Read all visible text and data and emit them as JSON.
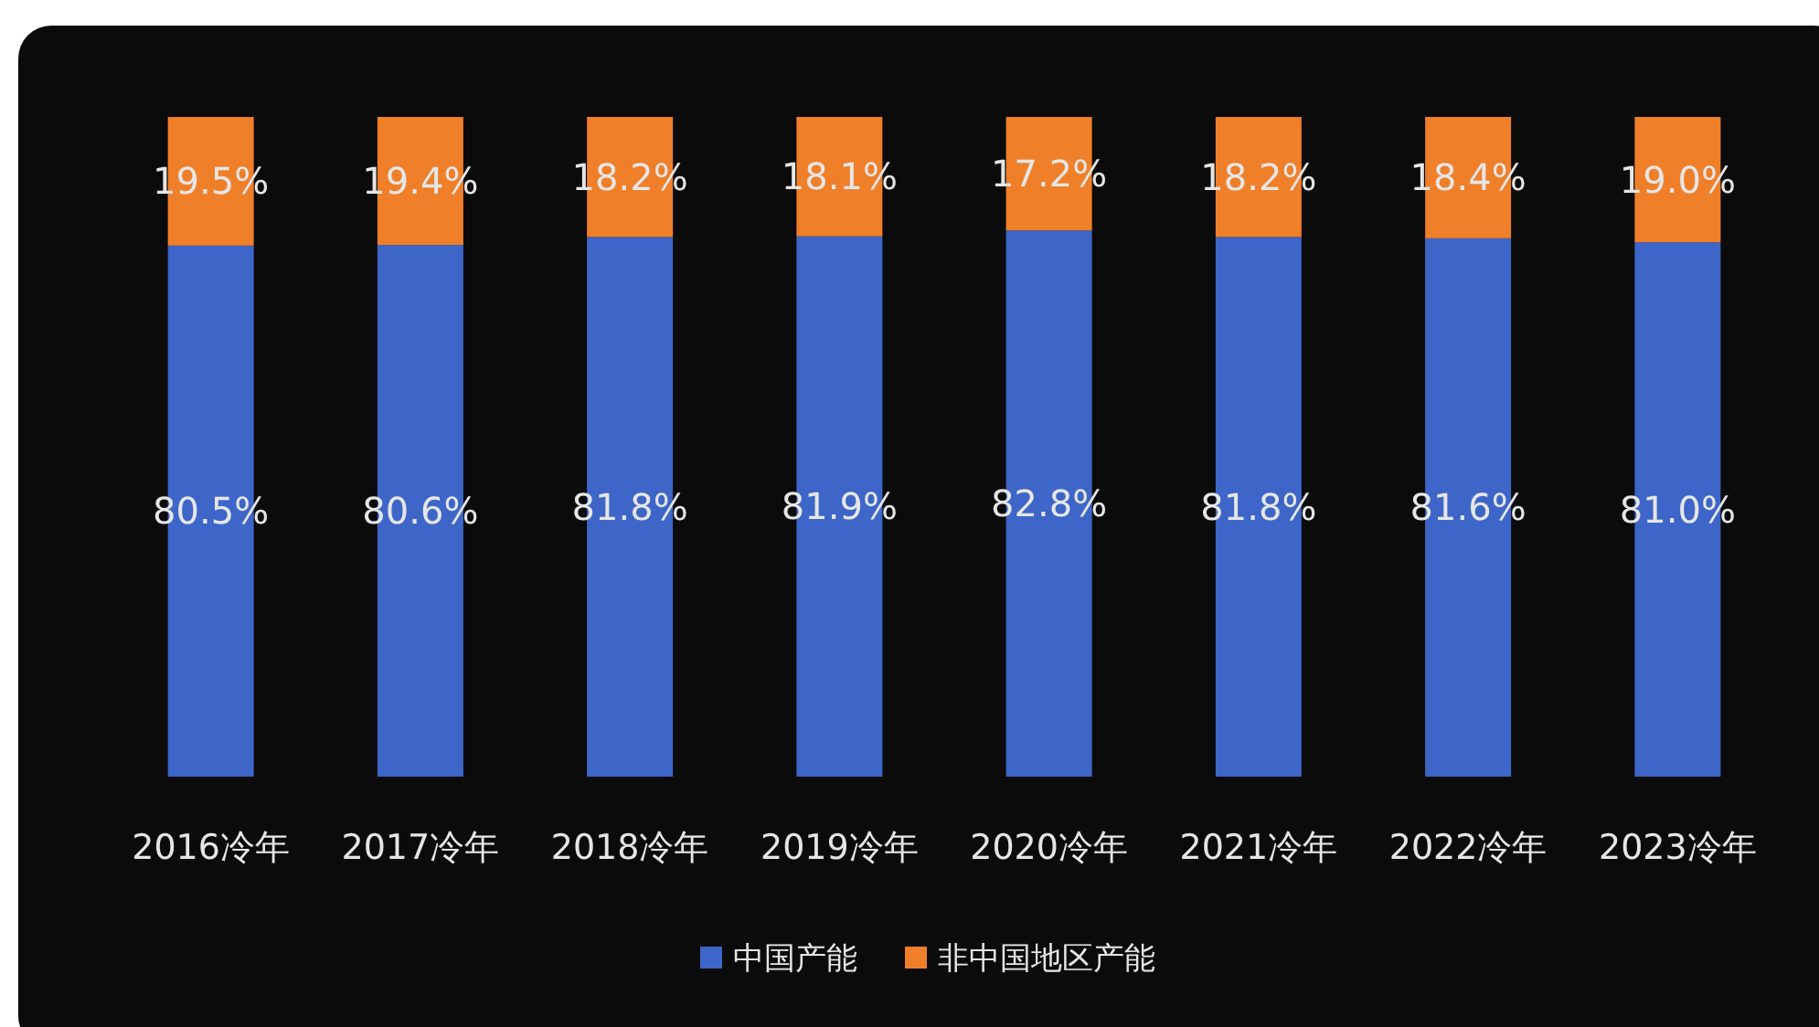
{
  "chart_data": {
    "type": "bar",
    "stacked": true,
    "data_labels": true,
    "legend": "bottom",
    "categories": [
      "2016冷年",
      "2017冷年",
      "2018冷年",
      "2019冷年",
      "2020冷年",
      "2021冷年",
      "2022冷年",
      "2023冷年"
    ],
    "series": [
      {
        "name": "中国产能",
        "color": "#3d66c8",
        "values": [
          80.5,
          80.6,
          81.8,
          81.9,
          82.8,
          81.8,
          81.6,
          81.0
        ],
        "value_labels": [
          "80.5%",
          "80.6%",
          "81.8%",
          "81.9%",
          "82.8%",
          "81.8%",
          "81.6%",
          "81.0%"
        ]
      },
      {
        "name": "非中国地区产能",
        "color": "#f07f2a",
        "values": [
          19.5,
          19.4,
          18.2,
          18.1,
          17.2,
          18.2,
          18.4,
          19.0
        ],
        "value_labels": [
          "19.5%",
          "19.4%",
          "18.2%",
          "18.1%",
          "17.2%",
          "18.2%",
          "18.4%",
          "19.0%"
        ]
      }
    ]
  }
}
